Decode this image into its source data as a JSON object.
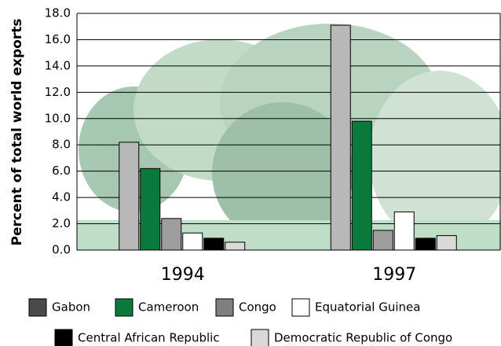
{
  "chart_data": {
    "type": "bar",
    "y_label": "Percent of total world exports",
    "categories": [
      "1994",
      "1997"
    ],
    "series": [
      {
        "name": "Gabon",
        "color": "#b8b8b8",
        "values": [
          8.2,
          17.1
        ]
      },
      {
        "name": "Cameroon",
        "color": "#0a7a3c",
        "values": [
          6.2,
          9.8
        ]
      },
      {
        "name": "Congo",
        "color": "#9e9e9e",
        "values": [
          2.4,
          1.5
        ]
      },
      {
        "name": "Equatorial Guinea",
        "color": "#ffffff",
        "values": [
          1.3,
          2.9
        ]
      },
      {
        "name": "Central African Republic",
        "color": "#000000",
        "values": [
          0.9,
          0.9
        ]
      },
      {
        "name": "Democratic Republic of Congo",
        "color": "#d9d9d9",
        "values": [
          0.6,
          1.1
        ]
      }
    ],
    "ylim": [
      0,
      18
    ],
    "yticks": [
      {
        "value": 0,
        "label": "0.0"
      },
      {
        "value": 2,
        "label": "2.0"
      },
      {
        "value": 4,
        "label": "4.0"
      },
      {
        "value": 6,
        "label": "6.0"
      },
      {
        "value": 8,
        "label": "8.0"
      },
      {
        "value": 10,
        "label": "10.0"
      },
      {
        "value": 12,
        "label": "12.0"
      },
      {
        "value": 14,
        "label": "14.0"
      },
      {
        "value": 16,
        "label": "16.0"
      },
      {
        "value": 18,
        "label": "18.0"
      }
    ],
    "grid": true
  }
}
